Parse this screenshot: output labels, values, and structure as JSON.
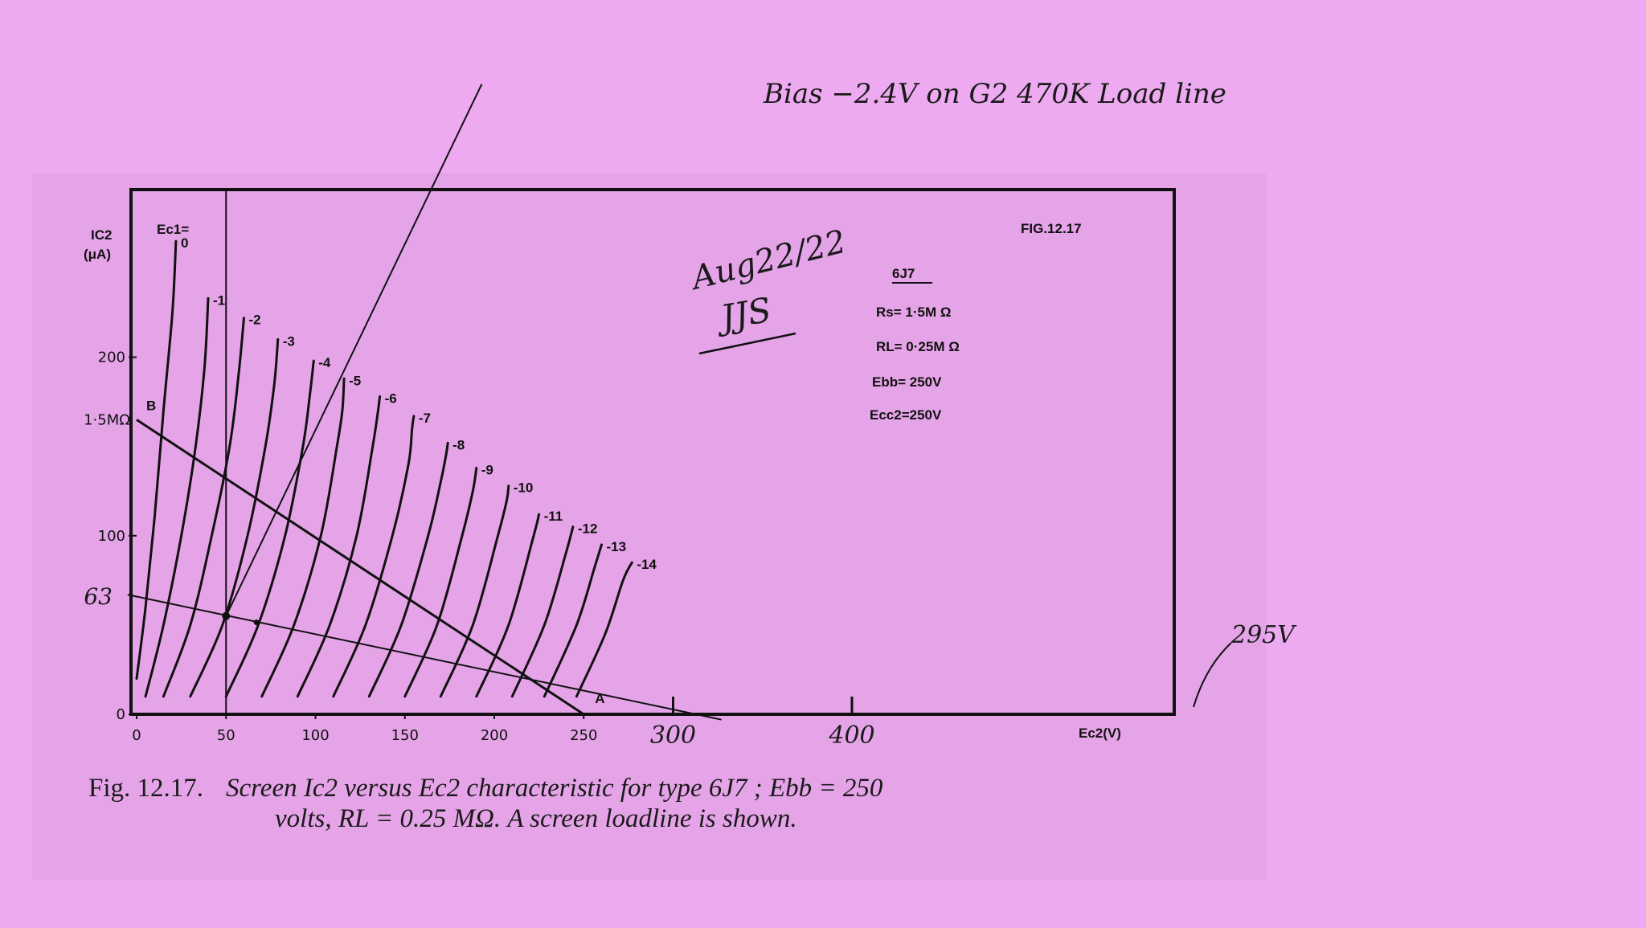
{
  "chart_data": {
    "type": "line",
    "figure_label": "FIG.12.17",
    "y_axis_label": [
      "IC2",
      "(μA)"
    ],
    "x_axis_label": "Ec2(V)",
    "curve_header": "Ec1=",
    "xlim": [
      0,
      400
    ],
    "ylim": [
      0,
      250
    ],
    "x_ticks": [
      0,
      50,
      100,
      150,
      200,
      250
    ],
    "x_tick_labels": [
      "0",
      "50",
      "100",
      "150",
      "200",
      "250"
    ],
    "y_ticks": [
      0,
      100,
      200
    ],
    "y_tick_labels": [
      "0",
      "100",
      "200"
    ],
    "handwritten_x_ticks": [
      {
        "value": 300,
        "label": "300"
      },
      {
        "value": 400,
        "label": "400"
      }
    ],
    "series": [
      {
        "name": "0",
        "points": [
          [
            0,
            20
          ],
          [
            5,
            60
          ],
          [
            10,
            110
          ],
          [
            15,
            170
          ],
          [
            20,
            225
          ],
          [
            22,
            265
          ]
        ]
      },
      {
        "name": "-1",
        "points": [
          [
            5,
            10
          ],
          [
            15,
            50
          ],
          [
            25,
            100
          ],
          [
            33,
            150
          ],
          [
            38,
            195
          ],
          [
            40,
            233
          ]
        ]
      },
      {
        "name": "-2",
        "points": [
          [
            15,
            10
          ],
          [
            30,
            50
          ],
          [
            42,
            100
          ],
          [
            52,
            150
          ],
          [
            57,
            190
          ],
          [
            60,
            222
          ]
        ]
      },
      {
        "name": "-3",
        "points": [
          [
            30,
            10
          ],
          [
            48,
            50
          ],
          [
            62,
            100
          ],
          [
            72,
            150
          ],
          [
            77,
            185
          ],
          [
            79,
            210
          ]
        ]
      },
      {
        "name": "-4",
        "points": [
          [
            50,
            10
          ],
          [
            68,
            50
          ],
          [
            83,
            100
          ],
          [
            93,
            150
          ],
          [
            97,
            180
          ],
          [
            99,
            198
          ]
        ]
      },
      {
        "name": "-5",
        "points": [
          [
            70,
            10
          ],
          [
            88,
            50
          ],
          [
            103,
            100
          ],
          [
            112,
            150
          ],
          [
            115,
            170
          ],
          [
            116,
            188
          ]
        ]
      },
      {
        "name": "-6",
        "points": [
          [
            90,
            10
          ],
          [
            108,
            50
          ],
          [
            123,
            100
          ],
          [
            132,
            150
          ],
          [
            135,
            170
          ],
          [
            136,
            178
          ]
        ]
      },
      {
        "name": "-7",
        "points": [
          [
            110,
            10
          ],
          [
            128,
            50
          ],
          [
            143,
            100
          ],
          [
            152,
            140
          ],
          [
            154,
            160
          ],
          [
            155,
            167
          ]
        ]
      },
      {
        "name": "-8",
        "points": [
          [
            130,
            10
          ],
          [
            148,
            50
          ],
          [
            163,
            100
          ],
          [
            170,
            130
          ],
          [
            173,
            145
          ],
          [
            174,
            152
          ]
        ]
      },
      {
        "name": "-9",
        "points": [
          [
            150,
            10
          ],
          [
            168,
            50
          ],
          [
            182,
            100
          ],
          [
            188,
            125
          ],
          [
            190,
            138
          ]
        ]
      },
      {
        "name": "-10",
        "points": [
          [
            170,
            10
          ],
          [
            188,
            50
          ],
          [
            202,
            100
          ],
          [
            207,
            120
          ],
          [
            208,
            128
          ]
        ]
      },
      {
        "name": "-11",
        "points": [
          [
            190,
            10
          ],
          [
            208,
            50
          ],
          [
            222,
            100
          ],
          [
            225,
            112
          ]
        ]
      },
      {
        "name": "-12",
        "points": [
          [
            210,
            10
          ],
          [
            228,
            50
          ],
          [
            240,
            90
          ],
          [
            244,
            105
          ]
        ]
      },
      {
        "name": "-13",
        "points": [
          [
            228,
            10
          ],
          [
            246,
            50
          ],
          [
            256,
            82
          ],
          [
            260,
            95
          ]
        ]
      },
      {
        "name": "-14",
        "points": [
          [
            246,
            10
          ],
          [
            262,
            45
          ],
          [
            272,
            75
          ],
          [
            277,
            85
          ]
        ]
      }
    ],
    "load_lines": [
      {
        "points": [
          [
            0,
            165
          ],
          [
            250,
            0
          ]
        ],
        "end_labels": [
          "B",
          "A"
        ],
        "intercept_label": "1·5MΩ"
      },
      {
        "points": [
          [
            -5,
            67
          ],
          [
            327,
            -3
          ]
        ],
        "intercept_label": "63"
      },
      {
        "points": [
          [
            50,
            55
          ],
          [
            193,
            353
          ]
        ],
        "label": "Bias −2.4V on G2 470K Load line"
      }
    ],
    "vertical_line_x": 50,
    "annotations": {
      "voltage_295": "295V",
      "handwritten_date": "Aug22/22",
      "initials": "JJS"
    },
    "params": {
      "tube": "6J7",
      "rs": "Rs= 1·5M Ω",
      "rl": "RL= 0·25M Ω",
      "ebb": "Ebb= 250V",
      "ecc2": "Ecc2=250V"
    }
  },
  "caption": {
    "number": "Fig. 12.17.",
    "line1": "Screen Ic2 versus Ec2 characteristic for type 6J7 ;  Ebb = 250",
    "line2": "volts, RL = 0.25 MΩ.  A screen loadline is shown."
  },
  "colors": {
    "background": "#eeaaf0",
    "ink": "#111111"
  }
}
